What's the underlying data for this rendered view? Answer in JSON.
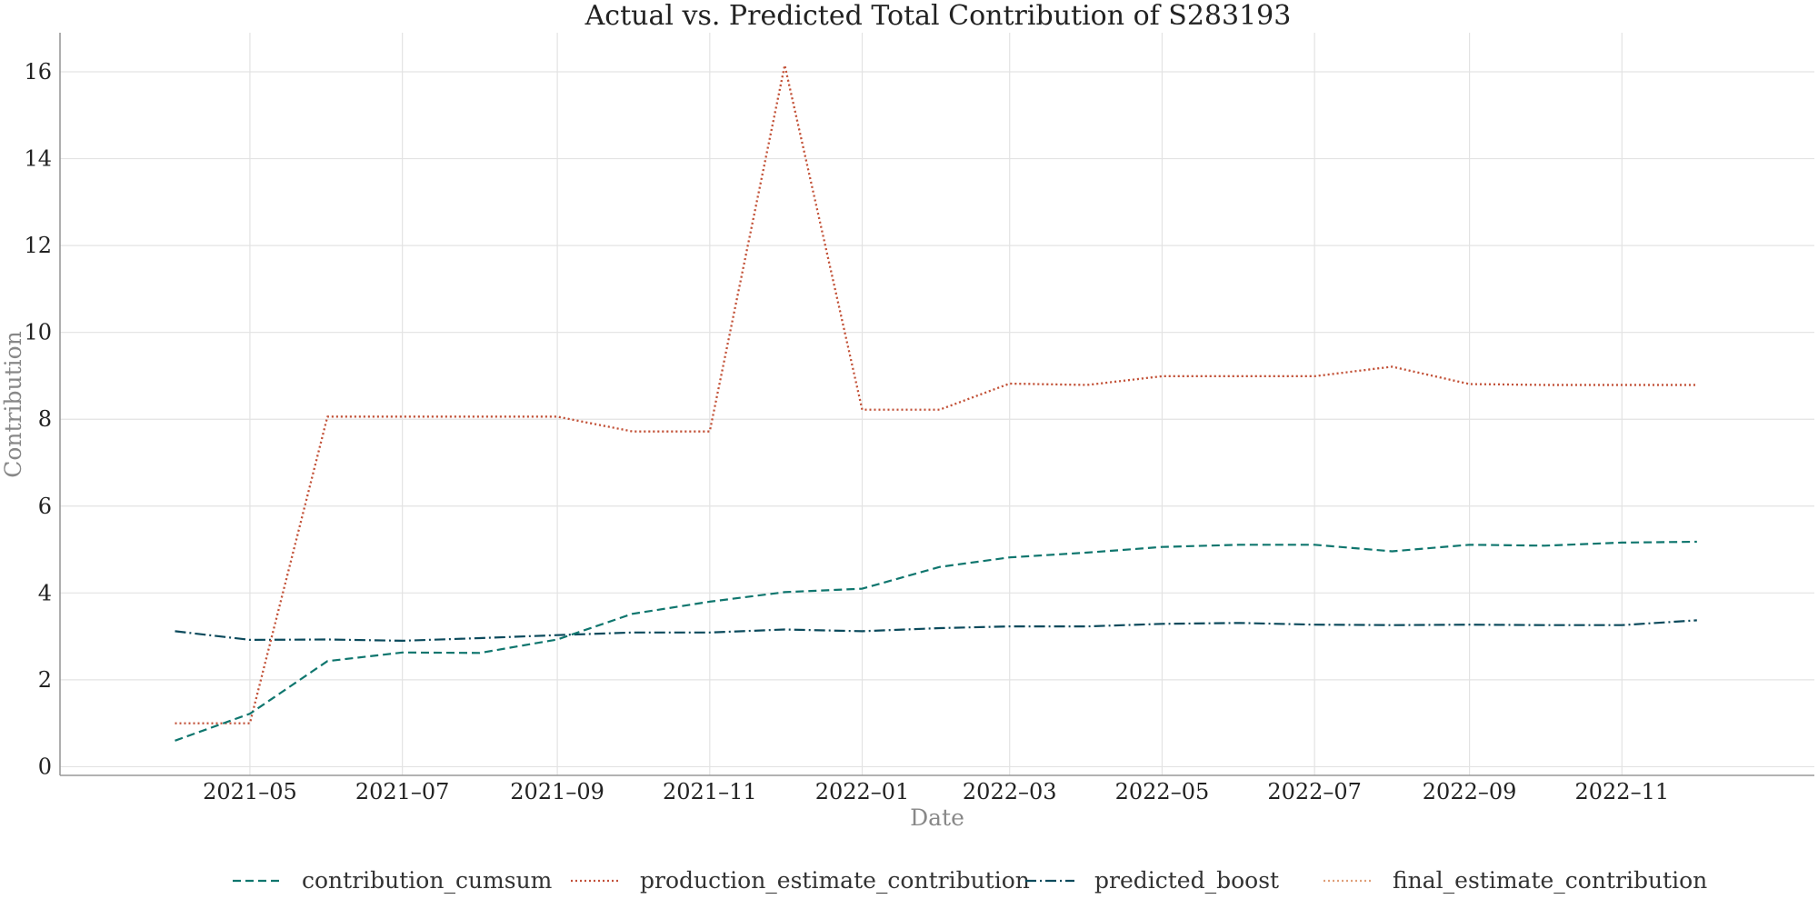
{
  "chart_data": {
    "type": "line",
    "title": "Actual vs. Predicted Total Contribution of S283193",
    "xlabel": "Date",
    "ylabel": "Contribution",
    "x": [
      "2021-04",
      "2021-05",
      "2021-06",
      "2021-07",
      "2021-08",
      "2021-09",
      "2021-10",
      "2021-11",
      "2021-12",
      "2022-01",
      "2022-02",
      "2022-03",
      "2022-04",
      "2022-05",
      "2022-06",
      "2022-07",
      "2022-08",
      "2022-09",
      "2022-10",
      "2022-11",
      "2022-12"
    ],
    "x_tick_labels": [
      "2021–05",
      "2021–07",
      "2021–09",
      "2021–11",
      "2022–01",
      "2022–03",
      "2022–05",
      "2022–07",
      "2022–09",
      "2022–11"
    ],
    "x_tick_dates": [
      "2021-05",
      "2021-07",
      "2021-09",
      "2021-11",
      "2022-01",
      "2022-03",
      "2022-05",
      "2022-07",
      "2022-09",
      "2022-11"
    ],
    "xlim": [
      "2021-02-14",
      "2023-01-17"
    ],
    "y_ticks": [
      0,
      2,
      4,
      6,
      8,
      10,
      12,
      14,
      16
    ],
    "ylim": [
      -0.2,
      16.9
    ],
    "grid": true,
    "legend_position": "bottom-center",
    "series": [
      {
        "name": "contribution_cumsum",
        "color": "#0f766e",
        "style": "dashed",
        "values": [
          0.6,
          1.22,
          2.43,
          2.63,
          2.62,
          2.93,
          3.52,
          3.8,
          4.02,
          4.1,
          4.6,
          4.82,
          4.93,
          5.06,
          5.11,
          5.11,
          4.96,
          5.11,
          5.09,
          5.16,
          5.18
        ]
      },
      {
        "name": "production_estimate_contribution",
        "color": "#c2513a",
        "style": "dotted",
        "values": [
          1.0,
          1.0,
          8.06,
          8.06,
          8.06,
          8.06,
          7.72,
          7.72,
          16.15,
          8.22,
          8.22,
          8.82,
          8.79,
          8.99,
          8.99,
          8.99,
          9.21,
          8.81,
          8.79,
          8.79,
          8.79
        ]
      },
      {
        "name": "predicted_boost",
        "color": "#0b4a5c",
        "style": "dashdot",
        "values": [
          3.12,
          2.92,
          2.93,
          2.9,
          2.96,
          3.03,
          3.09,
          3.09,
          3.16,
          3.12,
          3.19,
          3.23,
          3.23,
          3.29,
          3.31,
          3.27,
          3.26,
          3.27,
          3.26,
          3.26,
          3.37
        ]
      },
      {
        "name": "final_estimate_contribution",
        "color": "#e0a07a",
        "style": "dotted",
        "values": [
          1.0,
          1.0,
          8.06,
          8.06,
          8.06,
          8.06,
          7.72,
          7.72,
          16.15,
          8.22,
          8.22,
          8.82,
          8.79,
          8.99,
          8.99,
          8.99,
          9.21,
          8.81,
          8.79,
          8.79,
          8.79
        ]
      }
    ]
  }
}
